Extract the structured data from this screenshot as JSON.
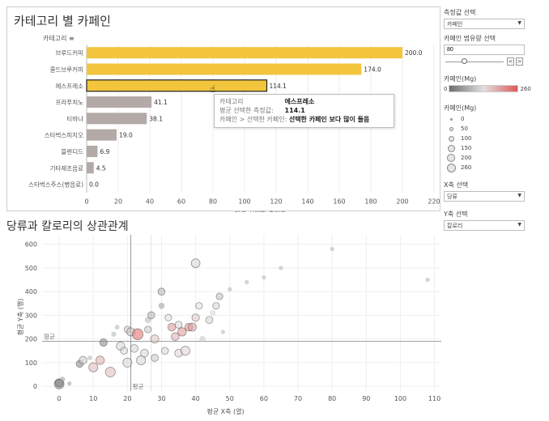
{
  "top_chart": {
    "title": "카테고리 별 카페인",
    "category_header": "카테고리",
    "xlabel": "평균 선택한 측정값",
    "highlight_color": "#f2c53d",
    "muted_color": "#b3aaa7"
  },
  "tooltip": {
    "rows": [
      {
        "key": "카테고리",
        "value": "에스프레소"
      },
      {
        "key": "평균 선택한 측정값:",
        "value": "114.1"
      },
      {
        "key": "카페인 > 선택한 카페인:",
        "value": "선택한 카페인 보다 많이 들음"
      }
    ]
  },
  "bottom_chart": {
    "title": "당류과 칼로리의 상관관계",
    "xlabel": "평균 X축 (열)",
    "ylabel": "평균 Y축 (행)",
    "ref_label_x": "평균",
    "ref_label_y": "평균"
  },
  "controls": {
    "measure_label": "측정값 선택",
    "measure_value": "카페인",
    "caffeine_range_label": "카페인 범유량 선택",
    "caffeine_range_value": "80",
    "stepper_prev": "<",
    "stepper_next": ">",
    "color_legend_label": "카페인(Mg)",
    "color_legend_min": "0",
    "color_legend_max": "260",
    "size_legend_label": "카페인(Mg)",
    "size_legend_items": [
      "0",
      "50",
      "100",
      "150",
      "200",
      "260"
    ],
    "x_axis_select_label": "X축 선택",
    "x_axis_select_value": "당류",
    "y_axis_select_label": "Y축 선택",
    "y_axis_select_value": "칼로리",
    "dropdown_arrow_icon": "chevron-down-icon"
  },
  "chart_data": [
    {
      "type": "bar",
      "orientation": "horizontal",
      "title": "카테고리 별 카페인",
      "xlabel": "평균 선택한 측정값",
      "categories": [
        "브루드커피",
        "콜드브루커피",
        "에스프레소",
        "프라푸치노",
        "티바나",
        "스타벅스피지오",
        "블렌디드",
        "기타제조음료",
        "스타벅스주스(병음료)"
      ],
      "values": [
        200.0,
        174.0,
        114.1,
        41.1,
        38.1,
        19.0,
        6.9,
        4.5,
        0.0
      ],
      "value_labels": [
        "200.0",
        "174.0",
        "114.1",
        "41.1",
        "38.1",
        "19.0",
        "6.9",
        "4.5",
        "0.0"
      ],
      "highlight": [
        true,
        true,
        true,
        false,
        false,
        false,
        false,
        false,
        false
      ],
      "selected": "에스프레소",
      "xlim": [
        0,
        220
      ],
      "xticks": [
        0,
        20,
        40,
        60,
        80,
        100,
        120,
        140,
        160,
        180,
        200,
        220
      ]
    },
    {
      "type": "scatter",
      "title": "당류과 칼로리의 상관관계",
      "xlabel": "평균 X축 (열)",
      "ylabel": "평균 Y축 (행)",
      "xlim": [
        -5,
        112
      ],
      "ylim": [
        -20,
        640
      ],
      "xticks": [
        0,
        10,
        20,
        30,
        40,
        50,
        60,
        70,
        80,
        90,
        100,
        110
      ],
      "yticks": [
        0,
        100,
        200,
        300,
        400,
        500,
        600
      ],
      "ref_x": 21,
      "ref_y": 190,
      "ref_x2": 27,
      "points": [
        {
          "x": 0,
          "y": 10,
          "s": 150,
          "c": 0.05
        },
        {
          "x": 0,
          "y": 15,
          "s": 80,
          "c": 0.1
        },
        {
          "x": 1,
          "y": 30,
          "s": 20,
          "c": 0.2
        },
        {
          "x": 3,
          "y": 12,
          "s": 10,
          "c": 0.2
        },
        {
          "x": 6,
          "y": 95,
          "s": 60,
          "c": 0.1
        },
        {
          "x": 7,
          "y": 110,
          "s": 80,
          "c": 0.4
        },
        {
          "x": 9,
          "y": 120,
          "s": 15,
          "c": 0.3
        },
        {
          "x": 10,
          "y": 80,
          "s": 120,
          "c": 0.65
        },
        {
          "x": 12,
          "y": 110,
          "s": 100,
          "c": 0.7
        },
        {
          "x": 13,
          "y": 185,
          "s": 70,
          "c": 0.1
        },
        {
          "x": 15,
          "y": 60,
          "s": 150,
          "c": 0.65
        },
        {
          "x": 16,
          "y": 220,
          "s": 20,
          "c": 0.3
        },
        {
          "x": 17,
          "y": 250,
          "s": 15,
          "c": 0.3
        },
        {
          "x": 18,
          "y": 170,
          "s": 100,
          "c": 0.45
        },
        {
          "x": 19,
          "y": 150,
          "s": 60,
          "c": 0.55
        },
        {
          "x": 20,
          "y": 100,
          "s": 120,
          "c": 0.45
        },
        {
          "x": 20,
          "y": 240,
          "s": 50,
          "c": 0.6
        },
        {
          "x": 21,
          "y": 230,
          "s": 90,
          "c": 0.4
        },
        {
          "x": 22,
          "y": 160,
          "s": 80,
          "c": 0.45
        },
        {
          "x": 23,
          "y": 220,
          "s": 200,
          "c": 0.95
        },
        {
          "x": 24,
          "y": 110,
          "s": 120,
          "c": 0.45
        },
        {
          "x": 25,
          "y": 140,
          "s": 80,
          "c": 0.45
        },
        {
          "x": 26,
          "y": 240,
          "s": 50,
          "c": 0.4
        },
        {
          "x": 26,
          "y": 280,
          "s": 40,
          "c": 0.3
        },
        {
          "x": 27,
          "y": 300,
          "s": 60,
          "c": 0.3
        },
        {
          "x": 28,
          "y": 120,
          "s": 60,
          "c": 0.4
        },
        {
          "x": 28,
          "y": 200,
          "s": 90,
          "c": 0.6
        },
        {
          "x": 30,
          "y": 400,
          "s": 60,
          "c": 0.3
        },
        {
          "x": 30,
          "y": 340,
          "s": 40,
          "c": 0.2
        },
        {
          "x": 31,
          "y": 150,
          "s": 60,
          "c": 0.45
        },
        {
          "x": 32,
          "y": 290,
          "s": 50,
          "c": 0.5
        },
        {
          "x": 33,
          "y": 250,
          "s": 80,
          "c": 0.8
        },
        {
          "x": 34,
          "y": 210,
          "s": 80,
          "c": 0.7
        },
        {
          "x": 35,
          "y": 140,
          "s": 80,
          "c": 0.55
        },
        {
          "x": 35,
          "y": 260,
          "s": 60,
          "c": 0.55
        },
        {
          "x": 36,
          "y": 230,
          "s": 100,
          "c": 0.8
        },
        {
          "x": 37,
          "y": 150,
          "s": 120,
          "c": 0.55
        },
        {
          "x": 38,
          "y": 250,
          "s": 80,
          "c": 0.8
        },
        {
          "x": 39,
          "y": 250,
          "s": 90,
          "c": 0.75
        },
        {
          "x": 40,
          "y": 290,
          "s": 70,
          "c": 0.6
        },
        {
          "x": 41,
          "y": 340,
          "s": 50,
          "c": 0.5
        },
        {
          "x": 40,
          "y": 520,
          "s": 110,
          "c": 0.45
        },
        {
          "x": 42,
          "y": 200,
          "s": 40,
          "c": 0.4
        },
        {
          "x": 44,
          "y": 280,
          "s": 60,
          "c": 0.45
        },
        {
          "x": 45,
          "y": 310,
          "s": 40,
          "c": 0.45
        },
        {
          "x": 46,
          "y": 340,
          "s": 50,
          "c": 0.45
        },
        {
          "x": 47,
          "y": 380,
          "s": 50,
          "c": 0.35
        },
        {
          "x": 48,
          "y": 230,
          "s": 10,
          "c": 0.3
        },
        {
          "x": 50,
          "y": 410,
          "s": 10,
          "c": 0.3
        },
        {
          "x": 55,
          "y": 440,
          "s": 10,
          "c": 0.3
        },
        {
          "x": 60,
          "y": 460,
          "s": 10,
          "c": 0.3
        },
        {
          "x": 65,
          "y": 500,
          "s": 10,
          "c": 0.3
        },
        {
          "x": 80,
          "y": 580,
          "s": 10,
          "c": 0.3
        },
        {
          "x": 108,
          "y": 450,
          "s": 10,
          "c": 0.3
        }
      ]
    }
  ]
}
